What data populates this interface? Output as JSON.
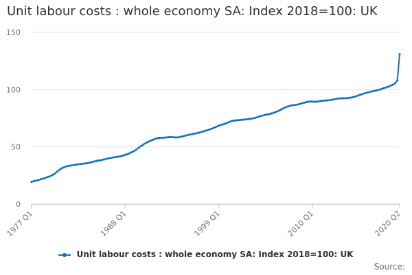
{
  "chart_data": {
    "type": "line",
    "title": "Unit labour costs : whole economy SA: Index 2018=100: UK",
    "xlabel": "",
    "ylabel": "",
    "ylim": [
      0,
      150
    ],
    "yticks": [
      0,
      50,
      100,
      150
    ],
    "xtick_labels": [
      "1977 Q1",
      "1988 Q1",
      "1999 Q1",
      "2010 Q1",
      "2020 Q2"
    ],
    "x_range": [
      "1977 Q1",
      "2020 Q2"
    ],
    "grid": "horizontal",
    "legend_position": "bottom",
    "series": [
      {
        "name": "Unit labour costs : whole economy SA: Index 2018=100: UK",
        "color": "#0f72b5",
        "values": [
          19.5,
          20.1,
          20.6,
          21.1,
          21.8,
          22.4,
          23.0,
          23.8,
          24.5,
          25.5,
          26.8,
          28.4,
          30.0,
          31.3,
          32.3,
          33.0,
          33.4,
          33.8,
          34.2,
          34.5,
          34.8,
          35.0,
          35.3,
          35.6,
          35.9,
          36.3,
          36.8,
          37.3,
          37.8,
          38.2,
          38.5,
          39.0,
          39.5,
          40.0,
          40.4,
          40.8,
          41.1,
          41.4,
          41.8,
          42.3,
          42.9,
          43.6,
          44.4,
          45.3,
          46.4,
          47.7,
          49.2,
          50.7,
          52.1,
          53.3,
          54.4,
          55.3,
          56.2,
          57.0,
          57.6,
          57.9,
          58.0,
          58.1,
          58.3,
          58.5,
          58.6,
          58.4,
          58.2,
          58.4,
          58.8,
          59.3,
          59.8,
          60.3,
          60.8,
          61.2,
          61.6,
          62.0,
          62.5,
          63.1,
          63.7,
          64.3,
          64.9,
          65.6,
          66.4,
          67.3,
          68.2,
          69.0,
          69.6,
          70.2,
          71.0,
          71.9,
          72.6,
          73.0,
          73.2,
          73.4,
          73.6,
          73.8,
          74.0,
          74.2,
          74.5,
          74.9,
          75.4,
          76.0,
          76.7,
          77.3,
          77.8,
          78.3,
          78.7,
          79.2,
          79.8,
          80.6,
          81.5,
          82.5,
          83.5,
          84.5,
          85.3,
          85.9,
          86.3,
          86.6,
          86.9,
          87.4,
          88.0,
          88.6,
          89.1,
          89.5,
          89.6,
          89.5,
          89.4,
          89.6,
          90.0,
          90.3,
          90.4,
          90.6,
          90.8,
          91.2,
          91.6,
          92.0,
          92.3,
          92.4,
          92.4,
          92.5,
          92.7,
          93.0,
          93.4,
          94.0,
          94.7,
          95.4,
          96.1,
          96.8,
          97.4,
          97.9,
          98.4,
          98.8,
          99.3,
          99.8,
          100.4,
          101.1,
          101.8,
          102.5,
          103.3,
          104.2,
          105.5,
          108.0,
          131.0
        ]
      }
    ]
  },
  "legend": {
    "label": "Unit labour costs : whole economy SA: Index 2018=100: UK"
  },
  "source": {
    "label": "Source:"
  },
  "colors": {
    "series": "#0f72b5",
    "grid": "#e2e2e3",
    "axis": "#b3b3b3",
    "text": "#323132",
    "muted": "#707071"
  }
}
